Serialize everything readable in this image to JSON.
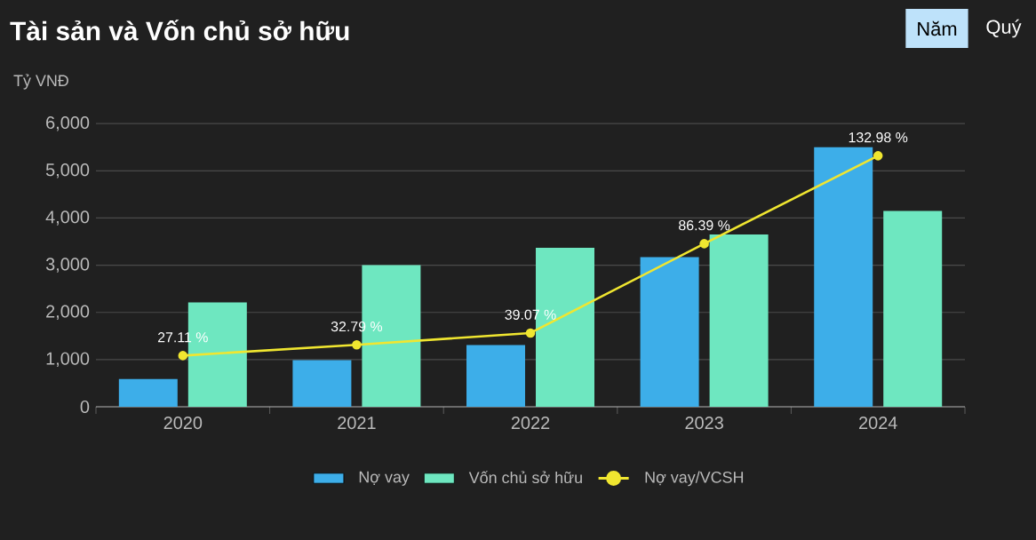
{
  "chart_data": {
    "type": "bar",
    "title": "Tài sản và Vốn chủ sở hữu",
    "ylabel": "Tỷ VNĐ",
    "categories": [
      "2020",
      "2021",
      "2022",
      "2023",
      "2024"
    ],
    "series": [
      {
        "name": "Nợ vay",
        "color": "#3daee9",
        "values": [
          590,
          990,
          1310,
          3170,
          5500
        ]
      },
      {
        "name": "Vốn chủ sở hữu",
        "color": "#6ee7c0",
        "values": [
          2210,
          3000,
          3370,
          3650,
          4150
        ]
      },
      {
        "name": "Nợ vay/VCSH",
        "type": "line",
        "axis": "y2",
        "color": "#f0e630",
        "values": [
          27.11,
          32.79,
          39.07,
          86.39,
          132.98
        ],
        "value_labels": [
          "27.11 %",
          "32.79 %",
          "39.07 %",
          "86.39 %",
          "132.98 %"
        ]
      }
    ],
    "ylim": [
      0,
      6000
    ],
    "yticks": [
      0,
      {
        "value": 1000,
        "label": "1,000"
      },
      {
        "value": 2000,
        "label": "2,000"
      },
      {
        "value": 3000,
        "label": "3,000"
      },
      {
        "value": 4000,
        "label": "4,000"
      },
      {
        "value": 5000,
        "label": "5,000"
      },
      {
        "value": 6000,
        "label": "6,000"
      }
    ],
    "y2lim": [
      0,
      150
    ],
    "grid": "y",
    "legend": "bottom",
    "marker": "circle",
    "annotations": [
      "Năm",
      "Quý"
    ]
  }
}
